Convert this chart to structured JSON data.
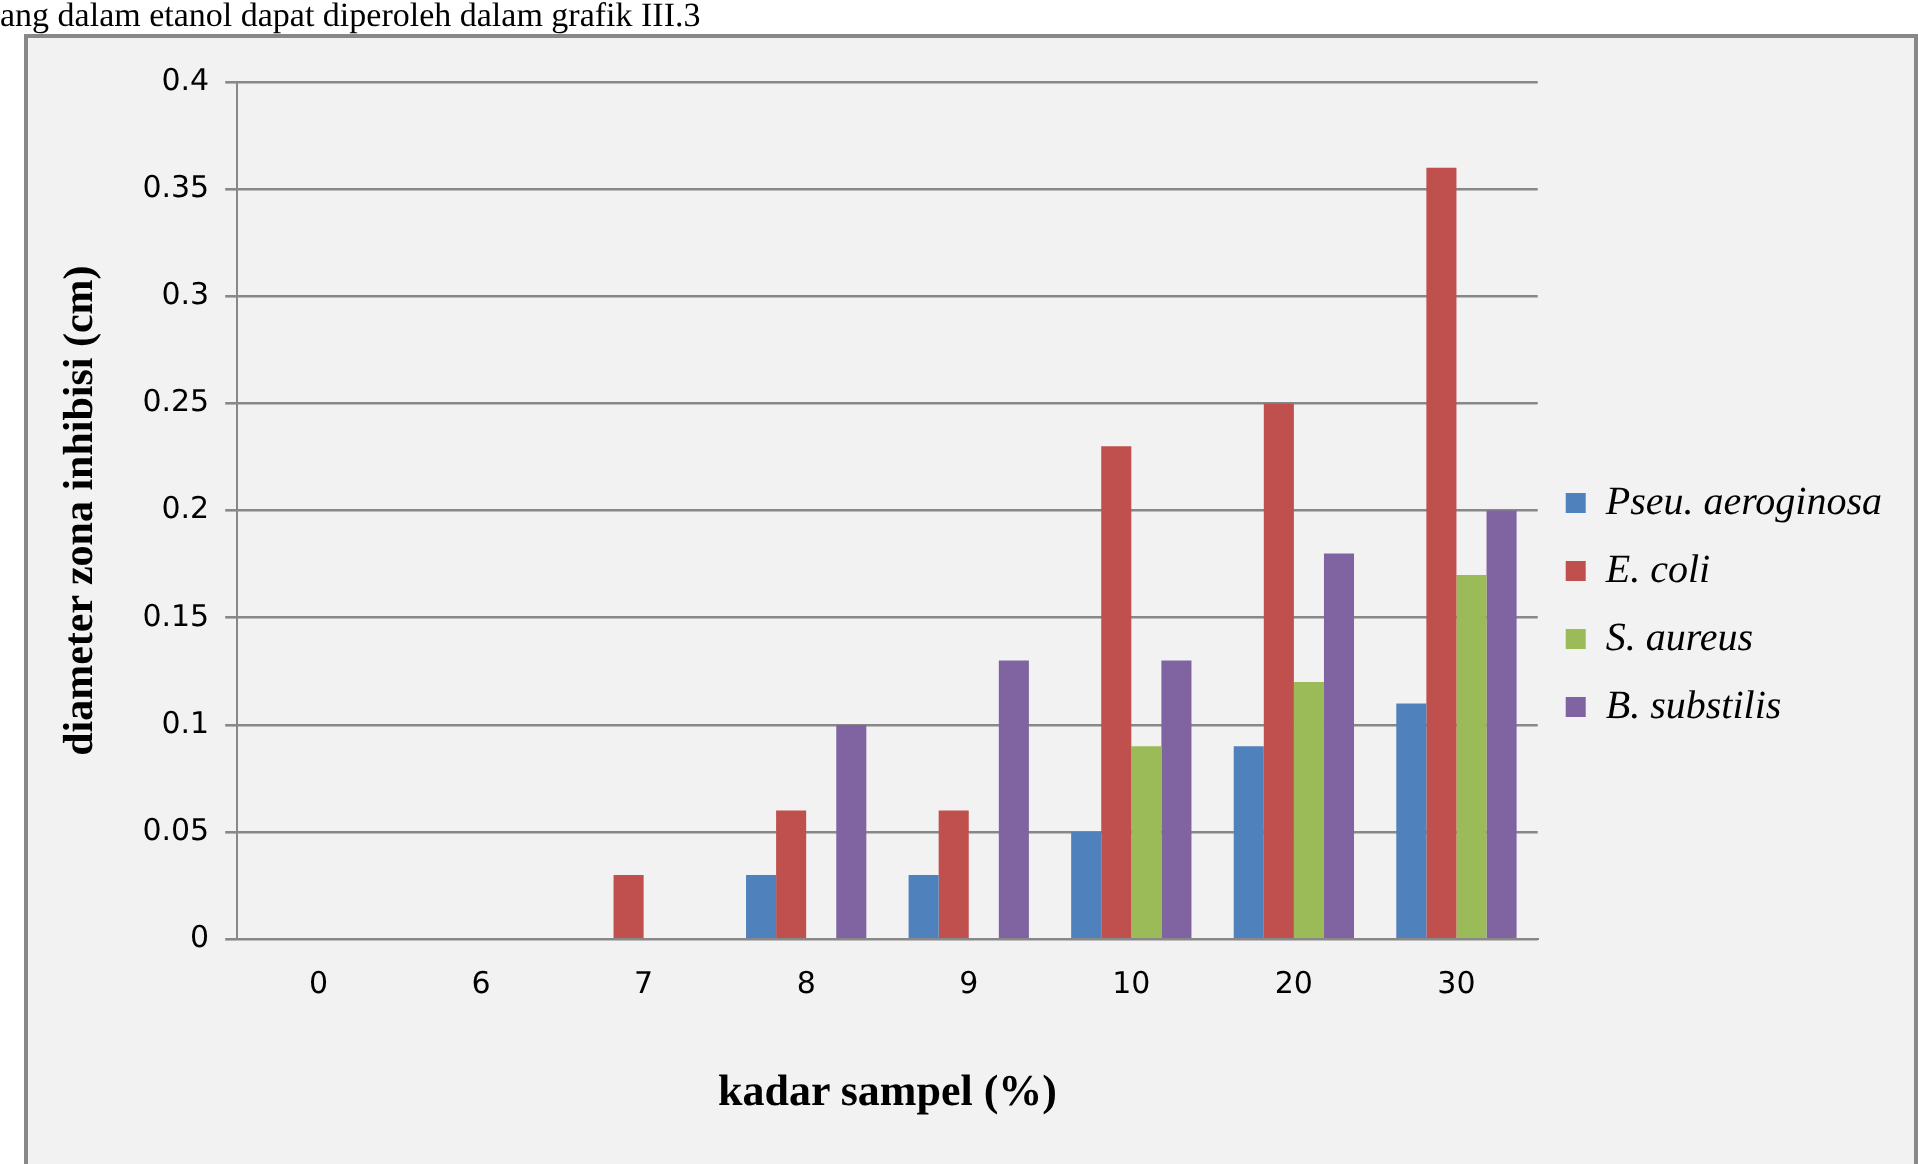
{
  "chart_data": {
    "type": "bar",
    "xlabel": "kadar sampel (%)",
    "ylabel": "diameter zona inhibisi (cm)",
    "annotations": [
      "ang dalam etanol dapat diperoleh dalam grafik III.3"
    ],
    "categories": [
      "0",
      "6",
      "7",
      "8",
      "9",
      "10",
      "20",
      "30"
    ],
    "series": [
      {
        "name": "Pseu. aeroginosa",
        "color": "#4f81bd",
        "values": [
          0,
          0,
          0,
          0.03,
          0.03,
          0.05,
          0.09,
          0.11
        ]
      },
      {
        "name": "E. coli",
        "color": "#c0504d",
        "values": [
          0,
          0,
          0.03,
          0.06,
          0.06,
          0.23,
          0.25,
          0.36
        ]
      },
      {
        "name": "S. aureus",
        "color": "#9bbb59",
        "values": [
          0,
          0,
          0,
          0,
          0,
          0.09,
          0.12,
          0.17
        ]
      },
      {
        "name": "B. substilis",
        "color": "#8064a2",
        "values": [
          0,
          0,
          0,
          0.1,
          0.13,
          0.13,
          0.18,
          0.2
        ]
      }
    ],
    "ylim": [
      0,
      0.4
    ],
    "yticks": [
      0,
      0.05,
      0.1,
      0.15,
      0.2,
      0.25,
      0.3,
      0.35,
      0.4
    ],
    "grid": "y",
    "legend": "right"
  }
}
